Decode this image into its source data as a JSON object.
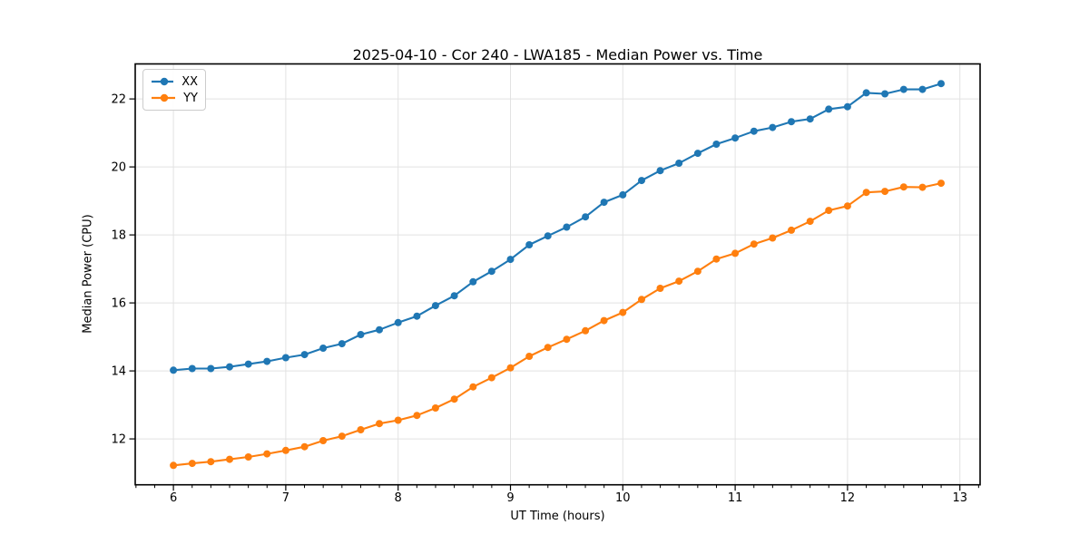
{
  "chart_data": {
    "type": "line",
    "title": "2025-04-10 - Cor 240 - LWA185 - Median Power vs. Time",
    "xlabel": "UT Time (hours)",
    "ylabel": "Median Power (CPU)",
    "xlim": [
      5.66,
      13.18
    ],
    "ylim": [
      10.65,
      23.03
    ],
    "xticks": [
      6,
      7,
      8,
      9,
      10,
      11,
      12,
      13
    ],
    "yticks": [
      12,
      14,
      16,
      18,
      20,
      22
    ],
    "x_minor_tick_step_hours": 0.1667,
    "grid": true,
    "legend_position": "upper-left",
    "grid_color": "#e2e2e2",
    "x": [
      6.0,
      6.167,
      6.333,
      6.5,
      6.667,
      6.833,
      7.0,
      7.167,
      7.333,
      7.5,
      7.667,
      7.833,
      8.0,
      8.167,
      8.333,
      8.5,
      8.667,
      8.833,
      9.0,
      9.167,
      9.333,
      9.5,
      9.667,
      9.833,
      10.0,
      10.167,
      10.333,
      10.5,
      10.667,
      10.833,
      11.0,
      11.167,
      11.333,
      11.5,
      11.667,
      11.833,
      12.0,
      12.167,
      12.333,
      12.5,
      12.667,
      12.833
    ],
    "series": [
      {
        "name": "XX",
        "color": "#1f77b4",
        "values": [
          14.02,
          14.07,
          14.07,
          14.12,
          14.2,
          14.28,
          14.39,
          14.48,
          14.67,
          14.8,
          15.07,
          15.21,
          15.42,
          15.61,
          15.92,
          16.21,
          16.62,
          16.93,
          17.28,
          17.71,
          17.97,
          18.23,
          18.53,
          18.96,
          19.18,
          19.6,
          19.89,
          20.11,
          20.4,
          20.67,
          20.85,
          21.05,
          21.16,
          21.33,
          21.41,
          21.7,
          21.77,
          22.18,
          22.15,
          22.28,
          22.28,
          22.45
        ]
      },
      {
        "name": "YY",
        "color": "#ff7f0e",
        "values": [
          11.22,
          11.28,
          11.33,
          11.4,
          11.47,
          11.56,
          11.66,
          11.77,
          11.95,
          12.08,
          12.27,
          12.45,
          12.55,
          12.69,
          12.91,
          13.17,
          13.53,
          13.8,
          14.09,
          14.43,
          14.69,
          14.93,
          15.18,
          15.48,
          15.72,
          16.1,
          16.43,
          16.64,
          16.93,
          17.29,
          17.46,
          17.73,
          17.91,
          18.14,
          18.4,
          18.72,
          18.85,
          19.25,
          19.28,
          19.41,
          19.4,
          19.52
        ]
      }
    ]
  }
}
